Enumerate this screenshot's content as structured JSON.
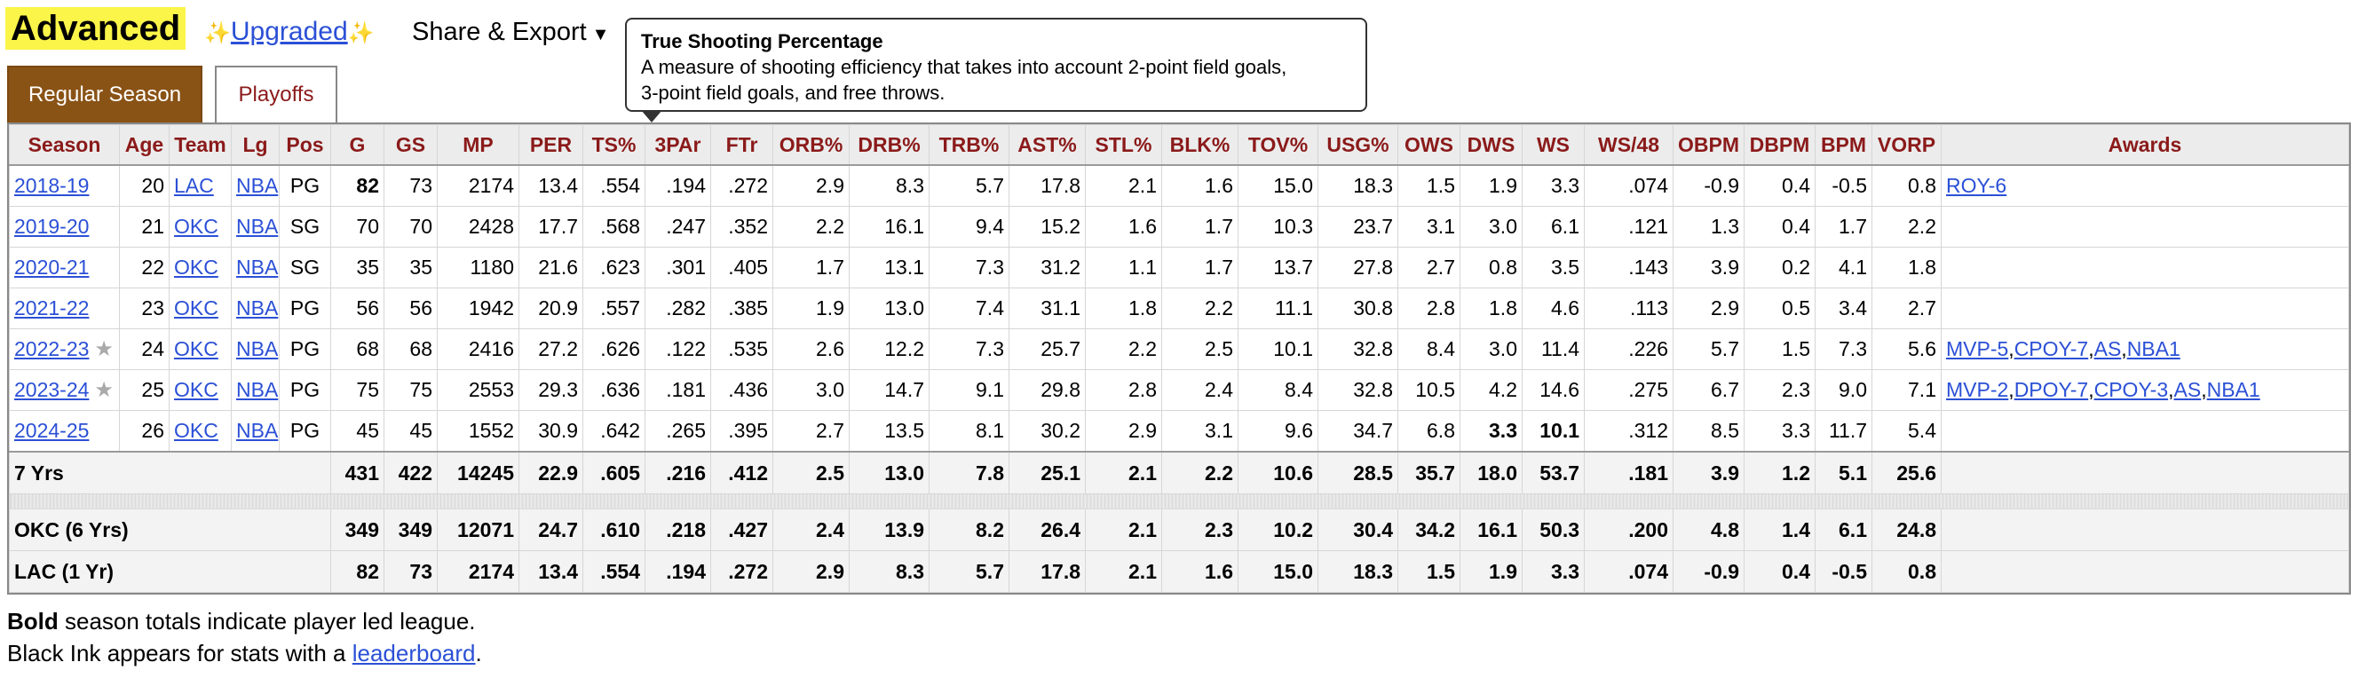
{
  "header": {
    "title": "Advanced",
    "upgraded_label": "Upgraded",
    "sparkle": "✨",
    "share_label": "Share & Export",
    "share_caret": "▼"
  },
  "tabs": [
    {
      "label": "Regular Season",
      "active": true
    },
    {
      "label": "Playoffs",
      "active": false
    }
  ],
  "tooltip": {
    "title": "True Shooting Percentage",
    "line1": "A measure of shooting efficiency that takes into account 2-point field goals,",
    "line2": "3-point field goals, and free throws."
  },
  "table": {
    "columns": [
      "Season",
      "Age",
      "Team",
      "Lg",
      "Pos",
      "G",
      "GS",
      "MP",
      "PER",
      "TS%",
      "3PAr",
      "FTr",
      "ORB%",
      "DRB%",
      "TRB%",
      "AST%",
      "STL%",
      "BLK%",
      "TOV%",
      "USG%",
      "OWS",
      "DWS",
      "WS",
      "WS/48",
      "OBPM",
      "DBPM",
      "BPM",
      "VORP",
      "Awards"
    ],
    "rows": [
      {
        "season": "2018-19",
        "star": false,
        "age": "20",
        "team": "LAC",
        "lg": "NBA",
        "pos": "PG",
        "g": "82",
        "gs": "73",
        "mp": "2174",
        "per": "13.4",
        "ts": ".554",
        "par3": ".194",
        "ftr": ".272",
        "orb": "2.9",
        "drb": "8.3",
        "trb": "5.7",
        "ast": "17.8",
        "stl": "2.1",
        "blk": "1.6",
        "tov": "15.0",
        "usg": "18.3",
        "ows": "1.5",
        "dws": "1.9",
        "ws": "3.3",
        "ws48": ".074",
        "obpm": "-0.9",
        "dbpm": "0.4",
        "bpm": "-0.5",
        "vorp": "0.8",
        "awards": [
          "ROY-6"
        ]
      },
      {
        "season": "2019-20",
        "star": false,
        "age": "21",
        "team": "OKC",
        "lg": "NBA",
        "pos": "SG",
        "g": "70",
        "gs": "70",
        "mp": "2428",
        "per": "17.7",
        "ts": ".568",
        "par3": ".247",
        "ftr": ".352",
        "orb": "2.2",
        "drb": "16.1",
        "trb": "9.4",
        "ast": "15.2",
        "stl": "1.6",
        "blk": "1.7",
        "tov": "10.3",
        "usg": "23.7",
        "ows": "3.1",
        "dws": "3.0",
        "ws": "6.1",
        "ws48": ".121",
        "obpm": "1.3",
        "dbpm": "0.4",
        "bpm": "1.7",
        "vorp": "2.2",
        "awards": []
      },
      {
        "season": "2020-21",
        "star": false,
        "age": "22",
        "team": "OKC",
        "lg": "NBA",
        "pos": "SG",
        "g": "35",
        "gs": "35",
        "mp": "1180",
        "per": "21.6",
        "ts": ".623",
        "par3": ".301",
        "ftr": ".405",
        "orb": "1.7",
        "drb": "13.1",
        "trb": "7.3",
        "ast": "31.2",
        "stl": "1.1",
        "blk": "1.7",
        "tov": "13.7",
        "usg": "27.8",
        "ows": "2.7",
        "dws": "0.8",
        "ws": "3.5",
        "ws48": ".143",
        "obpm": "3.9",
        "dbpm": "0.2",
        "bpm": "4.1",
        "vorp": "1.8",
        "awards": []
      },
      {
        "season": "2021-22",
        "star": false,
        "age": "23",
        "team": "OKC",
        "lg": "NBA",
        "pos": "PG",
        "g": "56",
        "gs": "56",
        "mp": "1942",
        "per": "20.9",
        "ts": ".557",
        "par3": ".282",
        "ftr": ".385",
        "orb": "1.9",
        "drb": "13.0",
        "trb": "7.4",
        "ast": "31.1",
        "stl": "1.8",
        "blk": "2.2",
        "tov": "11.1",
        "usg": "30.8",
        "ows": "2.8",
        "dws": "1.8",
        "ws": "4.6",
        "ws48": ".113",
        "obpm": "2.9",
        "dbpm": "0.5",
        "bpm": "3.4",
        "vorp": "2.7",
        "awards": []
      },
      {
        "season": "2022-23",
        "star": true,
        "age": "24",
        "team": "OKC",
        "lg": "NBA",
        "pos": "PG",
        "g": "68",
        "gs": "68",
        "mp": "2416",
        "per": "27.2",
        "ts": ".626",
        "par3": ".122",
        "ftr": ".535",
        "orb": "2.6",
        "drb": "12.2",
        "trb": "7.3",
        "ast": "25.7",
        "stl": "2.2",
        "blk": "2.5",
        "tov": "10.1",
        "usg": "32.8",
        "ows": "8.4",
        "dws": "3.0",
        "ws": "11.4",
        "ws48": ".226",
        "obpm": "5.7",
        "dbpm": "1.5",
        "bpm": "7.3",
        "vorp": "5.6",
        "awards": [
          "MVP-5",
          "CPOY-7",
          "AS",
          "NBA1"
        ]
      },
      {
        "season": "2023-24",
        "star": true,
        "age": "25",
        "team": "OKC",
        "lg": "NBA",
        "pos": "PG",
        "g": "75",
        "gs": "75",
        "mp": "2553",
        "per": "29.3",
        "ts": ".636",
        "par3": ".181",
        "ftr": ".436",
        "orb": "3.0",
        "drb": "14.7",
        "trb": "9.1",
        "ast": "29.8",
        "stl": "2.8",
        "blk": "2.4",
        "tov": "8.4",
        "usg": "32.8",
        "ows": "10.5",
        "dws": "4.2",
        "ws": "14.6",
        "ws48": ".275",
        "obpm": "6.7",
        "dbpm": "2.3",
        "bpm": "9.0",
        "vorp": "7.1",
        "awards": [
          "MVP-2",
          "DPOY-7",
          "CPOY-3",
          "AS",
          "NBA1"
        ]
      },
      {
        "season": "2024-25",
        "star": false,
        "age": "26",
        "team": "OKC",
        "lg": "NBA",
        "pos": "PG",
        "g": "45",
        "gs": "45",
        "mp": "1552",
        "per": "30.9",
        "ts": ".642",
        "par3": ".265",
        "ftr": ".395",
        "orb": "2.7",
        "drb": "13.5",
        "trb": "8.1",
        "ast": "30.2",
        "stl": "2.9",
        "blk": "3.1",
        "tov": "9.6",
        "usg": "34.7",
        "ows": "6.8",
        "dws": "3.3",
        "ws": "10.1",
        "ws48": ".312",
        "obpm": "8.5",
        "dbpm": "3.3",
        "bpm": "11.7",
        "vorp": "5.4",
        "awards": []
      }
    ],
    "totals": [
      {
        "label": "7 Yrs",
        "g": "431",
        "gs": "422",
        "mp": "14245",
        "per": "22.9",
        "ts": ".605",
        "par3": ".216",
        "ftr": ".412",
        "orb": "2.5",
        "drb": "13.0",
        "trb": "7.8",
        "ast": "25.1",
        "stl": "2.1",
        "blk": "2.2",
        "tov": "10.6",
        "usg": "28.5",
        "ows": "35.7",
        "dws": "18.0",
        "ws": "53.7",
        "ws48": ".181",
        "obpm": "3.9",
        "dbpm": "1.2",
        "bpm": "5.1",
        "vorp": "25.6"
      },
      {
        "label": "OKC (6 Yrs)",
        "g": "349",
        "gs": "349",
        "mp": "12071",
        "per": "24.7",
        "ts": ".610",
        "par3": ".218",
        "ftr": ".427",
        "orb": "2.4",
        "drb": "13.9",
        "trb": "8.2",
        "ast": "26.4",
        "stl": "2.1",
        "blk": "2.3",
        "tov": "10.2",
        "usg": "30.4",
        "ows": "34.2",
        "dws": "16.1",
        "ws": "50.3",
        "ws48": ".200",
        "obpm": "4.8",
        "dbpm": "1.4",
        "bpm": "6.1",
        "vorp": "24.8"
      },
      {
        "label": "LAC (1 Yr)",
        "g": "82",
        "gs": "73",
        "mp": "2174",
        "per": "13.4",
        "ts": ".554",
        "par3": ".194",
        "ftr": ".272",
        "orb": "2.9",
        "drb": "8.3",
        "trb": "5.7",
        "ast": "17.8",
        "stl": "2.1",
        "blk": "1.6",
        "tov": "15.0",
        "usg": "18.3",
        "ows": "1.5",
        "dws": "1.9",
        "ws": "3.3",
        "ws48": ".074",
        "obpm": "-0.9",
        "dbpm": "0.4",
        "bpm": "-0.5",
        "vorp": "0.8"
      }
    ]
  },
  "footer": {
    "bold_text": "Bold",
    "line1_rest": " season totals indicate player led league.",
    "line2_prefix": "Black Ink appears for stats with a ",
    "line2_link": "leaderboard",
    "line2_suffix": "."
  },
  "colors": {
    "title_highlight": "#fbf449",
    "active_tab": "#8a5316",
    "header_text": "#8b1a1a",
    "link": "#2b50d6"
  }
}
